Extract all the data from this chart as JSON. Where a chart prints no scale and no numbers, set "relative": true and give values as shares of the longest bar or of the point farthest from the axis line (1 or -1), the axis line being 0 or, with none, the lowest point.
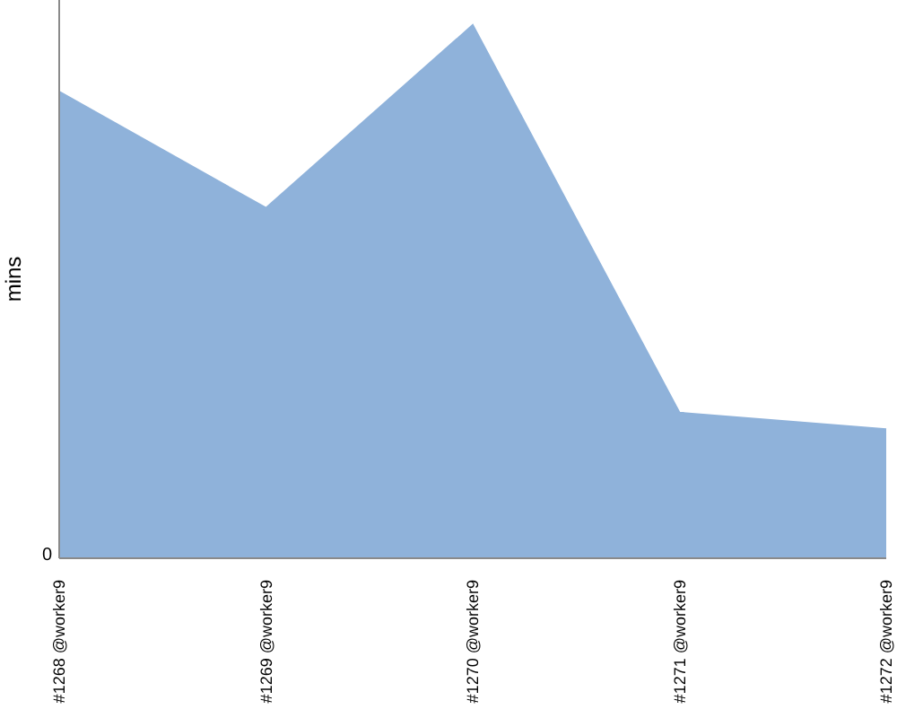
{
  "chart_data": {
    "type": "area",
    "ylabel": "mins",
    "relative": true,
    "annotations": [
      "0"
    ],
    "categories": [
      "#1268 @worker9",
      "#1269 @worker9",
      "#1270 @worker9",
      "#1271 @worker9",
      "#1272 @worker9"
    ],
    "values": [
      0.875,
      0.657,
      1,
      0.273,
      0.242
    ],
    "color": "#8fb2da"
  }
}
